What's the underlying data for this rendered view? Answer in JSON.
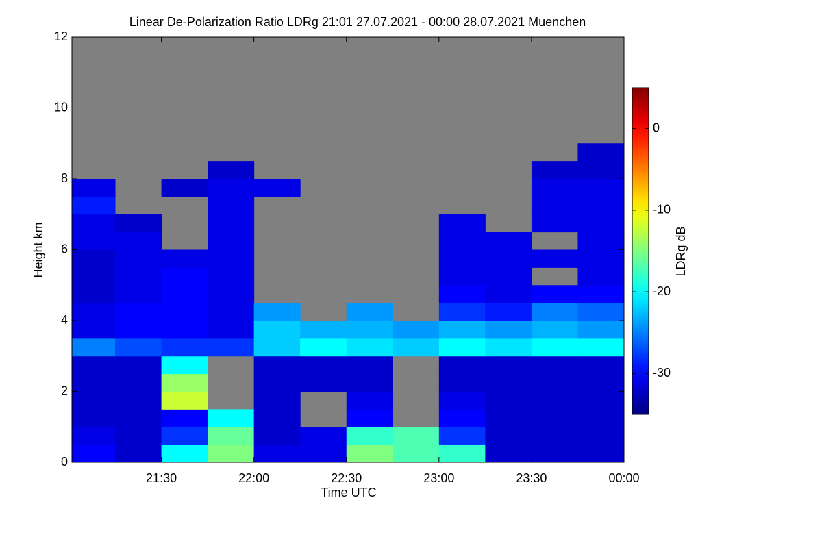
{
  "chart_data": {
    "type": "heatmap",
    "title": "Linear De-Polarization Ratio LDRg   21:01 27.07.2021 - 00:00 28.07.2021 Muenchen",
    "xlabel": "Time UTC",
    "ylabel": "Height km",
    "colorbar_label": "LDRg dB",
    "colormap": "jet",
    "background_color": "#808080",
    "xlim": [
      21.0167,
      24.0
    ],
    "xticks": [
      {
        "value": 21.5,
        "label": "21:30"
      },
      {
        "value": 22.0,
        "label": "22:00"
      },
      {
        "value": 22.5,
        "label": "22:30"
      },
      {
        "value": 23.0,
        "label": "23:00"
      },
      {
        "value": 23.5,
        "label": "23:30"
      },
      {
        "value": 24.0,
        "label": "00:00"
      }
    ],
    "ylim": [
      0,
      12
    ],
    "yticks": [
      0,
      2,
      4,
      6,
      8,
      10,
      12
    ],
    "clim": [
      -35,
      5
    ],
    "cticks": [
      -30,
      -20,
      -10,
      0
    ],
    "x": [
      21.125,
      21.375,
      21.625,
      21.875,
      22.125,
      22.375,
      22.625,
      22.875,
      23.125,
      23.375,
      23.625,
      23.875
    ],
    "y": [
      0.25,
      0.75,
      1.25,
      1.75,
      2.25,
      2.75,
      3.25,
      3.75,
      4.25,
      4.75,
      5.25,
      5.75,
      6.25,
      6.75,
      7.25,
      7.75,
      8.25,
      8.75
    ],
    "z": [
      [
        -30,
        -32,
        -20,
        -15,
        -31,
        -31,
        -15,
        -17,
        -18,
        -32,
        -32,
        -32
      ],
      [
        -31,
        -32,
        -28,
        -16,
        -32,
        -31,
        -18,
        -17,
        -28,
        -32,
        -32,
        -32
      ],
      [
        -32,
        -32,
        -30,
        -20,
        -32,
        null,
        -30,
        null,
        -30,
        -32,
        -32,
        -32
      ],
      [
        -32,
        -32,
        -12,
        null,
        -32,
        null,
        -31,
        null,
        -31,
        -32,
        -32,
        -32
      ],
      [
        -32,
        -32,
        -14,
        null,
        -32,
        -32,
        -32,
        null,
        -32,
        -32,
        -32,
        -32
      ],
      [
        -32,
        -32,
        -20,
        null,
        -32,
        -32,
        -32,
        null,
        -32,
        -32,
        -32,
        -32
      ],
      [
        -25,
        -27,
        -28,
        -28,
        -22,
        -20,
        -21,
        -22,
        -20,
        -21,
        -20,
        -20
      ],
      [
        -31,
        -30,
        -30,
        -31,
        -22,
        -23,
        -23,
        -24,
        -23,
        -24,
        -23,
        -24
      ],
      [
        -31,
        -30,
        -30,
        -31,
        -24,
        null,
        -24,
        null,
        -28,
        -29,
        -25,
        -26
      ],
      [
        -32,
        -31,
        -30,
        -31,
        null,
        null,
        null,
        null,
        -30,
        -31,
        -30,
        -30
      ],
      [
        -32,
        -31,
        -30,
        -31,
        null,
        null,
        null,
        null,
        -31,
        -31,
        null,
        -31
      ],
      [
        -32,
        -31,
        -31,
        -31,
        null,
        null,
        null,
        null,
        -31,
        -31,
        -31,
        -31
      ],
      [
        -31,
        -31,
        null,
        -31,
        null,
        null,
        null,
        null,
        -31,
        -31,
        null,
        -31
      ],
      [
        -31,
        -32,
        null,
        -31,
        null,
        null,
        null,
        null,
        -31,
        null,
        -31,
        -31
      ],
      [
        -29,
        null,
        null,
        -31,
        null,
        null,
        null,
        null,
        null,
        null,
        -31,
        -31
      ],
      [
        -31,
        null,
        -32,
        -31,
        -31,
        null,
        null,
        null,
        null,
        null,
        -31,
        -31
      ],
      [
        null,
        null,
        null,
        -32,
        null,
        null,
        null,
        null,
        null,
        null,
        -32,
        -32
      ],
      [
        null,
        null,
        null,
        null,
        null,
        null,
        null,
        null,
        null,
        null,
        null,
        -32
      ]
    ]
  }
}
